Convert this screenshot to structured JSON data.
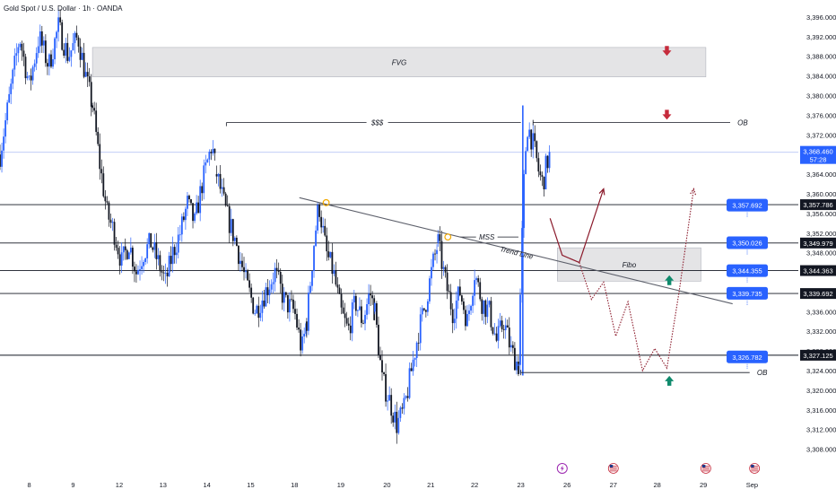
{
  "chart_data": {
    "type": "candlestick",
    "title": "Gold Spot / U.S. Dollar · 1h · OANDA",
    "instrument": "Gold Spot / U.S. Dollar",
    "timeframe": "1h",
    "source": "OANDA",
    "ylim": [
      3306,
      3398
    ],
    "price_ticks": [
      3308,
      3312,
      3316,
      3320,
      3324,
      3328,
      3332,
      3336,
      3340,
      3344,
      3348,
      3352,
      3356,
      3360,
      3364,
      3368,
      3372,
      3376,
      3380,
      3384,
      3388,
      3392,
      3396
    ],
    "price_tick_labels": [
      "3,308.000",
      "3,312.000",
      "3,316.000",
      "3,320.000",
      "3,324.000",
      "3,328.000",
      "3,332.000",
      "3,336.000",
      "3,340.000",
      "3,344.000",
      "3,348.000",
      "3,352.000",
      "3,356.000",
      "3,360.000",
      "3,364.000",
      "3,368.000",
      "3,372.000",
      "3,376.000",
      "3,380.000",
      "3,384.000",
      "3,388.000",
      "3,392.000",
      "3,396.000"
    ],
    "date_ticks": [
      {
        "label": "8",
        "t": 1.2
      },
      {
        "label": "9",
        "t": 3.0
      },
      {
        "label": "12",
        "t": 4.9
      },
      {
        "label": "13",
        "t": 6.7
      },
      {
        "label": "14",
        "t": 8.5
      },
      {
        "label": "15",
        "t": 10.3
      },
      {
        "label": "18",
        "t": 12.1
      },
      {
        "label": "19",
        "t": 14.0
      },
      {
        "label": "20",
        "t": 15.9
      },
      {
        "label": "21",
        "t": 17.7
      },
      {
        "label": "22",
        "t": 19.5
      },
      {
        "label": "23",
        "t": 21.4
      },
      {
        "label": "26",
        "t": 23.3
      },
      {
        "label": "27",
        "t": 25.2
      },
      {
        "label": "28",
        "t": 27.0
      },
      {
        "label": "29",
        "t": 28.9
      },
      {
        "label": "Sep",
        "t": 30.9
      }
    ],
    "t_range": [
      0,
      32.8
    ],
    "candles_segments": [
      {
        "t0": 0.0,
        "t1": 3.8,
        "anchors": [
          [
            0.0,
            3368
          ],
          [
            0.4,
            3380
          ],
          [
            0.8,
            3392
          ],
          [
            1.2,
            3382
          ],
          [
            1.6,
            3392
          ],
          [
            2.0,
            3386
          ],
          [
            2.4,
            3394
          ],
          [
            2.8,
            3388
          ],
          [
            3.2,
            3392
          ],
          [
            3.6,
            3382
          ],
          [
            3.8,
            3378
          ]
        ]
      },
      {
        "t0": 3.8,
        "t1": 8.9,
        "anchors": [
          [
            3.8,
            3378
          ],
          [
            4.1,
            3366
          ],
          [
            4.4,
            3356
          ],
          [
            4.7,
            3352
          ],
          [
            5.0,
            3346
          ],
          [
            5.3,
            3350
          ],
          [
            5.6,
            3344
          ],
          [
            5.9,
            3348
          ],
          [
            6.2,
            3350
          ],
          [
            6.5,
            3346
          ],
          [
            6.8,
            3342
          ],
          [
            7.1,
            3348
          ],
          [
            7.4,
            3352
          ],
          [
            7.7,
            3358
          ],
          [
            8.0,
            3354
          ],
          [
            8.3,
            3362
          ],
          [
            8.5,
            3366
          ],
          [
            8.7,
            3370
          ],
          [
            8.9,
            3364
          ]
        ]
      },
      {
        "t0": 8.9,
        "t1": 12.6,
        "anchors": [
          [
            8.9,
            3364
          ],
          [
            9.3,
            3356
          ],
          [
            9.7,
            3350
          ],
          [
            10.1,
            3342
          ],
          [
            10.5,
            3336
          ],
          [
            10.9,
            3340
          ],
          [
            11.3,
            3344
          ],
          [
            11.7,
            3338
          ],
          [
            12.1,
            3336
          ],
          [
            12.4,
            3328
          ],
          [
            12.6,
            3334
          ]
        ]
      },
      {
        "t0": 12.6,
        "t1": 15.4,
        "anchors": [
          [
            12.6,
            3334
          ],
          [
            12.9,
            3350
          ],
          [
            13.1,
            3358
          ],
          [
            13.4,
            3348
          ],
          [
            13.7,
            3344
          ],
          [
            14.0,
            3336
          ],
          [
            14.3,
            3332
          ],
          [
            14.6,
            3338
          ],
          [
            14.9,
            3334
          ],
          [
            15.2,
            3340
          ],
          [
            15.4,
            3336
          ]
        ]
      },
      {
        "t0": 15.4,
        "t1": 18.0,
        "anchors": [
          [
            15.4,
            3336
          ],
          [
            15.7,
            3322
          ],
          [
            16.0,
            3318
          ],
          [
            16.3,
            3313
          ],
          [
            16.6,
            3316
          ],
          [
            16.9,
            3324
          ],
          [
            17.2,
            3332
          ],
          [
            17.5,
            3338
          ],
          [
            17.8,
            3346
          ],
          [
            18.0,
            3350
          ]
        ]
      },
      {
        "t0": 18.0,
        "t1": 21.3,
        "anchors": [
          [
            18.0,
            3350
          ],
          [
            18.3,
            3342
          ],
          [
            18.6,
            3336
          ],
          [
            18.9,
            3340
          ],
          [
            19.2,
            3334
          ],
          [
            19.5,
            3344
          ],
          [
            19.8,
            3338
          ],
          [
            20.1,
            3336
          ],
          [
            20.4,
            3330
          ],
          [
            20.7,
            3334
          ],
          [
            21.0,
            3328
          ],
          [
            21.3,
            3325
          ]
        ]
      },
      {
        "t0": 21.3,
        "t1": 22.6,
        "anchors": [
          [
            21.3,
            3325
          ],
          [
            21.5,
            3360
          ],
          [
            21.65,
            3374
          ],
          [
            21.8,
            3372
          ],
          [
            22.0,
            3368
          ],
          [
            22.15,
            3364
          ],
          [
            22.3,
            3362
          ],
          [
            22.45,
            3366
          ],
          [
            22.6,
            3368
          ]
        ]
      }
    ],
    "levels": [
      {
        "price": 3357.786,
        "label": "3,357.786",
        "t0": 0,
        "t1": 32.8
      },
      {
        "price": 3349.979,
        "label": "3,349.979",
        "t0": 0,
        "t1": 32.8
      },
      {
        "price": 3344.363,
        "label": "3,344.363",
        "t0": 0,
        "t1": 32.8
      },
      {
        "price": 3339.692,
        "label": "3,339.692",
        "t0": 0,
        "t1": 32.8
      },
      {
        "price": 3327.125,
        "label": "3,327.125",
        "t0": 0,
        "t1": 32.8
      }
    ],
    "current_price": {
      "price": 3368.46,
      "label": "3,368.460",
      "countdown": "57:28"
    },
    "zones": [
      {
        "name": "FVG",
        "label": "FVG",
        "p_top": 3389.8,
        "p_bot": 3383.8,
        "t0": 3.8,
        "t1": 29.0
      },
      {
        "name": "Fibo",
        "label": "Fibo",
        "p_top": 3349.0,
        "p_bot": 3342.2,
        "t0": 22.9,
        "t1": 28.8
      }
    ],
    "annotations": [
      {
        "label": "$$$",
        "price": 3374.5,
        "t0": 9.3,
        "t1": 21.4,
        "label_t": 15.5
      },
      {
        "label": "OB",
        "price": 3374.5,
        "t0": 21.9,
        "t1": 30.0,
        "label_t": 30.3
      },
      {
        "label": "MSS",
        "price": 3351.2,
        "t0": 18.9,
        "t1": 21.3,
        "label_t": 20.0
      },
      {
        "label": "OB",
        "price": 3323.6,
        "t0": 21.4,
        "t1": 30.8,
        "label_t": 31.1
      }
    ],
    "trend_line": {
      "label": "Trend Line",
      "p0": 3359.2,
      "t0": 12.3,
      "p1": 3337.6,
      "t1": 30.1,
      "label_t": 21.2,
      "label_p": 3347.5
    },
    "swing_markers": [
      {
        "t": 13.4,
        "price": 3358.2
      },
      {
        "t": 18.4,
        "price": 3351.2
      }
    ],
    "projection_solid": [
      [
        22.6,
        3355
      ],
      [
        23.1,
        3347.5
      ],
      [
        23.8,
        3346
      ],
      [
        24.8,
        3361
      ]
    ],
    "projection_dotted": [
      [
        23.8,
        3346
      ],
      [
        24.3,
        3338.5
      ],
      [
        24.8,
        3342
      ],
      [
        25.3,
        3331
      ],
      [
        25.8,
        3338
      ],
      [
        26.4,
        3324
      ],
      [
        26.9,
        3328.5
      ],
      [
        27.4,
        3324.5
      ],
      [
        27.9,
        3340
      ],
      [
        28.5,
        3361
      ]
    ],
    "arrows": [
      {
        "direction": "down",
        "color": "#c62b3c",
        "t": 27.4,
        "price": 3389.0
      },
      {
        "direction": "down",
        "color": "#c62b3c",
        "t": 27.4,
        "price": 3376.0
      },
      {
        "direction": "up",
        "color": "#0f8a6c",
        "t": 27.5,
        "price": 3342.5
      },
      {
        "direction": "up",
        "color": "#0f8a6c",
        "t": 27.5,
        "price": 3322.0
      }
    ],
    "projection_tags": [
      {
        "price": 3357.692,
        "label": "3,357.692",
        "t": 30.7
      },
      {
        "price": 3350.026,
        "label": "3,350.026",
        "t": 30.7
      },
      {
        "price": 3344.355,
        "label": "3,344.355",
        "t": 30.7
      },
      {
        "price": 3339.735,
        "label": "3,339.735",
        "t": 30.7
      },
      {
        "price": 3326.782,
        "label": "3,326.782",
        "t": 30.7
      }
    ],
    "event_icons": [
      {
        "name": "lightning-icon",
        "t": 23.1
      },
      {
        "name": "us-flag-icon",
        "t": 25.2
      },
      {
        "name": "us-flag-icon",
        "t": 29.0
      },
      {
        "name": "us-flag-icon",
        "t": 31.0
      }
    ],
    "colors": {
      "candle_up": "#2962ff",
      "candle_down": "#131722",
      "level_line": "#131722",
      "trend_line": "#5d606b",
      "projection": "#8b1a2b",
      "tag_blue": "#2962ff",
      "zone_fill": "#e4e4e6"
    }
  }
}
